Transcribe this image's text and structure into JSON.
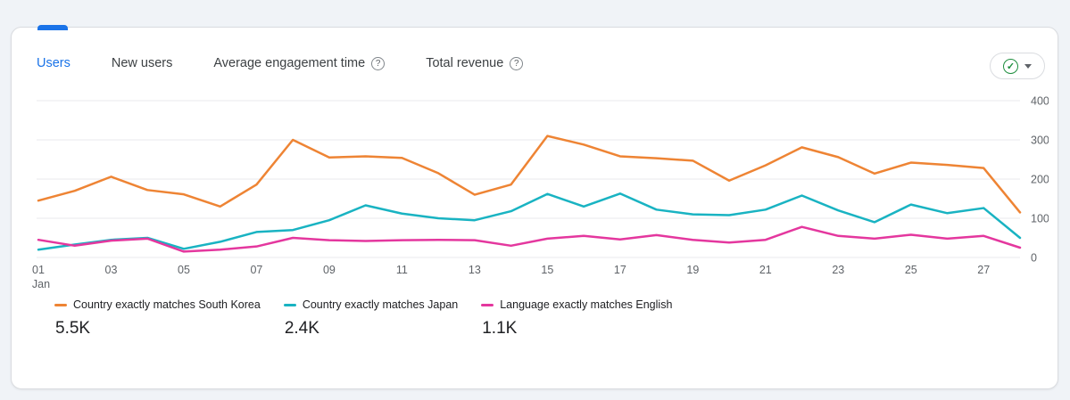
{
  "tabs": [
    {
      "label": "Users",
      "active": true,
      "has_help": false
    },
    {
      "label": "New users",
      "active": false,
      "has_help": false
    },
    {
      "label": "Average engagement time",
      "active": false,
      "has_help": true
    },
    {
      "label": "Total revenue",
      "active": false,
      "has_help": true
    }
  ],
  "help_icon_glyph": "?",
  "selector": {
    "check_glyph": "✓"
  },
  "colors": {
    "accent_blue": "#1a73e8",
    "check_green": "#1e8e3e",
    "gridline": "#e8eaed",
    "axis_text": "#5f6368"
  },
  "chart_data": {
    "type": "line",
    "title": "",
    "xlabel": "",
    "ylabel": "",
    "x": [
      1,
      2,
      3,
      4,
      5,
      6,
      7,
      8,
      9,
      10,
      11,
      12,
      13,
      14,
      15,
      16,
      17,
      18,
      19,
      20,
      21,
      22,
      23,
      24,
      25,
      26,
      27,
      28
    ],
    "x_axis_month": "Jan",
    "x_tick_days": [
      1,
      3,
      5,
      7,
      9,
      11,
      13,
      15,
      17,
      19,
      21,
      23,
      25,
      27
    ],
    "x_tick_labels": [
      "01",
      "03",
      "05",
      "07",
      "09",
      "11",
      "13",
      "15",
      "17",
      "19",
      "21",
      "23",
      "25",
      "27"
    ],
    "ylim": [
      0,
      400
    ],
    "y_ticks": [
      0,
      100,
      200,
      300,
      400
    ],
    "grid": "horizontal",
    "legend_position": "bottom",
    "series": [
      {
        "name": "Country exactly matches South Korea",
        "total": "5.5K",
        "color": "#ee8434",
        "values": [
          145,
          170,
          206,
          172,
          161,
          130,
          186,
          300,
          255,
          258,
          254,
          215,
          160,
          186,
          310,
          288,
          258,
          253,
          247,
          196,
          235,
          281,
          256,
          214,
          242,
          236,
          228,
          115
        ]
      },
      {
        "name": "Country exactly matches Japan",
        "total": "2.4K",
        "color": "#19b3c2",
        "values": [
          20,
          33,
          45,
          50,
          22,
          40,
          65,
          70,
          95,
          133,
          112,
          100,
          95,
          118,
          162,
          130,
          163,
          122,
          110,
          108,
          122,
          158,
          120,
          90,
          135,
          113,
          126,
          50
        ]
      },
      {
        "name": "Language exactly matches English",
        "total": "1.1K",
        "color": "#e4379e",
        "values": [
          45,
          30,
          43,
          48,
          15,
          20,
          28,
          50,
          44,
          42,
          44,
          45,
          44,
          30,
          48,
          55,
          46,
          57,
          45,
          38,
          45,
          78,
          55,
          48,
          58,
          48,
          55,
          25
        ]
      }
    ]
  }
}
